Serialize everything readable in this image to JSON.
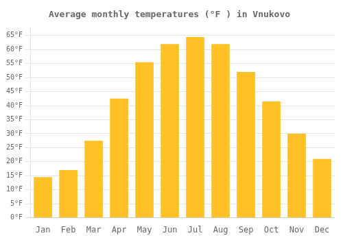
{
  "chart_data": {
    "type": "bar",
    "title": "Average monthly temperatures (°F ) in Vnukovo",
    "categories": [
      "Jan",
      "Feb",
      "Mar",
      "Apr",
      "May",
      "Jun",
      "Jul",
      "Aug",
      "Sep",
      "Oct",
      "Nov",
      "Dec"
    ],
    "values": [
      14.5,
      17.0,
      27.5,
      42.5,
      55.5,
      62.0,
      64.5,
      62.0,
      52.0,
      41.5,
      30.0,
      21.0
    ],
    "color": "#FFC125",
    "ylim": [
      0,
      68
    ],
    "yticks": [
      {
        "value": 0,
        "label": "0°F"
      },
      {
        "value": 5,
        "label": "5°F"
      },
      {
        "value": 10,
        "label": "10°F"
      },
      {
        "value": 15,
        "label": "15°F"
      },
      {
        "value": 20,
        "label": "20°F"
      },
      {
        "value": 25,
        "label": "25°F"
      },
      {
        "value": 30,
        "label": "30°F"
      },
      {
        "value": 35,
        "label": "35°F"
      },
      {
        "value": 40,
        "label": "40°F"
      },
      {
        "value": 45,
        "label": "45°F"
      },
      {
        "value": 50,
        "label": "50°F"
      },
      {
        "value": 55,
        "label": "55°F"
      },
      {
        "value": 60,
        "label": "60°F"
      },
      {
        "value": 65,
        "label": "65°F"
      }
    ],
    "grid": true
  }
}
